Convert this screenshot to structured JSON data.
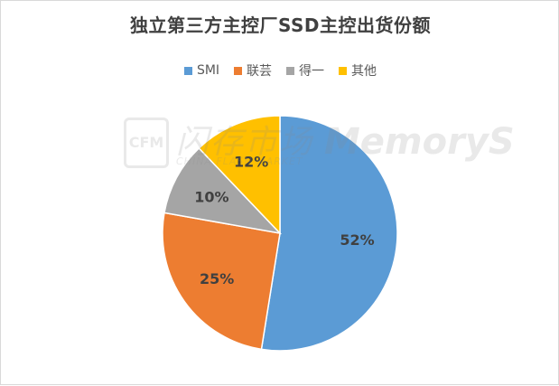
{
  "chart_data": {
    "type": "pie",
    "title": "独立第三方主控厂SSD主控出货份额",
    "categories": [
      "SMI",
      "联芸",
      "得一",
      "其他"
    ],
    "values": [
      52,
      25,
      10,
      12
    ],
    "labels": [
      "52%",
      "25%",
      "10%",
      "12%"
    ],
    "colors": [
      "#5b9bd5",
      "#ed7d31",
      "#a5a5a5",
      "#ffc000"
    ],
    "legend_position": "top"
  },
  "watermark": {
    "logo": "CFM",
    "cn": "闪存市场",
    "en": "CHINA FLASH MARKET",
    "brand": "MemoryS"
  }
}
